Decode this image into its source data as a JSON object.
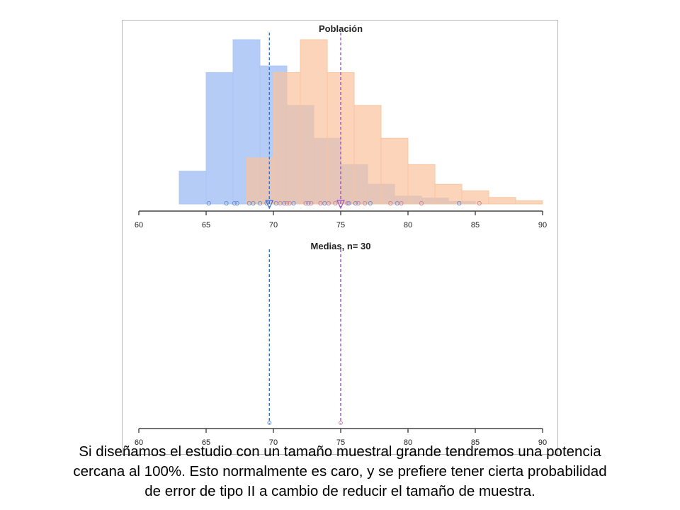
{
  "caption": {
    "line1": "Si diseñamos el estudio con un tamaño muestral grande tendremos una potencia",
    "line2": "cercana al 100%. Esto normalmente es caro, y se prefiere tener cierta probabilidad",
    "line3": "de error de tipo II a cambio de reducir el tamaño de muestra."
  },
  "colors": {
    "blue_fill": "#a8c4f5",
    "orange_fill": "#f9c29c",
    "blue_line": "#3a6fd8",
    "purple_line": "#9a55c8",
    "axis": "#444444"
  },
  "chart_data": [
    {
      "type": "bar",
      "title": "Población",
      "xlim": [
        60,
        90
      ],
      "x_ticks": [
        60,
        65,
        70,
        75,
        80,
        85,
        90
      ],
      "bin_width": 2,
      "series": [
        {
          "bins": [
            {
              "start": 63,
              "count": 5
            },
            {
              "start": 65,
              "count": 20
            },
            {
              "start": 67,
              "count": 25
            },
            {
              "start": 69,
              "count": 21
            },
            {
              "start": 71,
              "count": 15
            },
            {
              "start": 73,
              "count": 10
            },
            {
              "start": 75,
              "count": 6
            },
            {
              "start": 77,
              "count": 3
            },
            {
              "start": 79,
              "count": 1.2
            },
            {
              "start": 81,
              "count": 0.9
            },
            {
              "start": 83,
              "count": 0.4
            }
          ],
          "mean": 69.7,
          "points": [
            65.2,
            66.5,
            67.1,
            67.3,
            68.2,
            68.5,
            69.0,
            69.5,
            70.2,
            70.8,
            71.5,
            72.6,
            73.8,
            75.6,
            76.1,
            77.2,
            79.2,
            83.8
          ]
        },
        {
          "bins": [
            {
              "start": 68,
              "count": 7
            },
            {
              "start": 70,
              "count": 20
            },
            {
              "start": 72,
              "count": 25
            },
            {
              "start": 74,
              "count": 20
            },
            {
              "start": 76,
              "count": 15
            },
            {
              "start": 78,
              "count": 10
            },
            {
              "start": 80,
              "count": 6
            },
            {
              "start": 82,
              "count": 3
            },
            {
              "start": 84,
              "count": 2
            },
            {
              "start": 86,
              "count": 1
            },
            {
              "start": 88,
              "count": 0.5
            }
          ],
          "mean": 75.0,
          "points": [
            70.5,
            71.0,
            71.2,
            72.4,
            72.8,
            73.5,
            74.1,
            74.6,
            75.5,
            76.3,
            76.8,
            78.7,
            79.5,
            81.0,
            85.3
          ]
        }
      ]
    },
    {
      "type": "scatter",
      "title": "Medias, n= 30",
      "xlim": [
        60,
        90
      ],
      "x_ticks": [
        60,
        65,
        70,
        75,
        80,
        85,
        90
      ],
      "series": [
        {
          "mean": 69.7,
          "points": [
            69.7
          ]
        },
        {
          "mean": 75.0,
          "points": [
            75.0
          ]
        }
      ]
    }
  ]
}
